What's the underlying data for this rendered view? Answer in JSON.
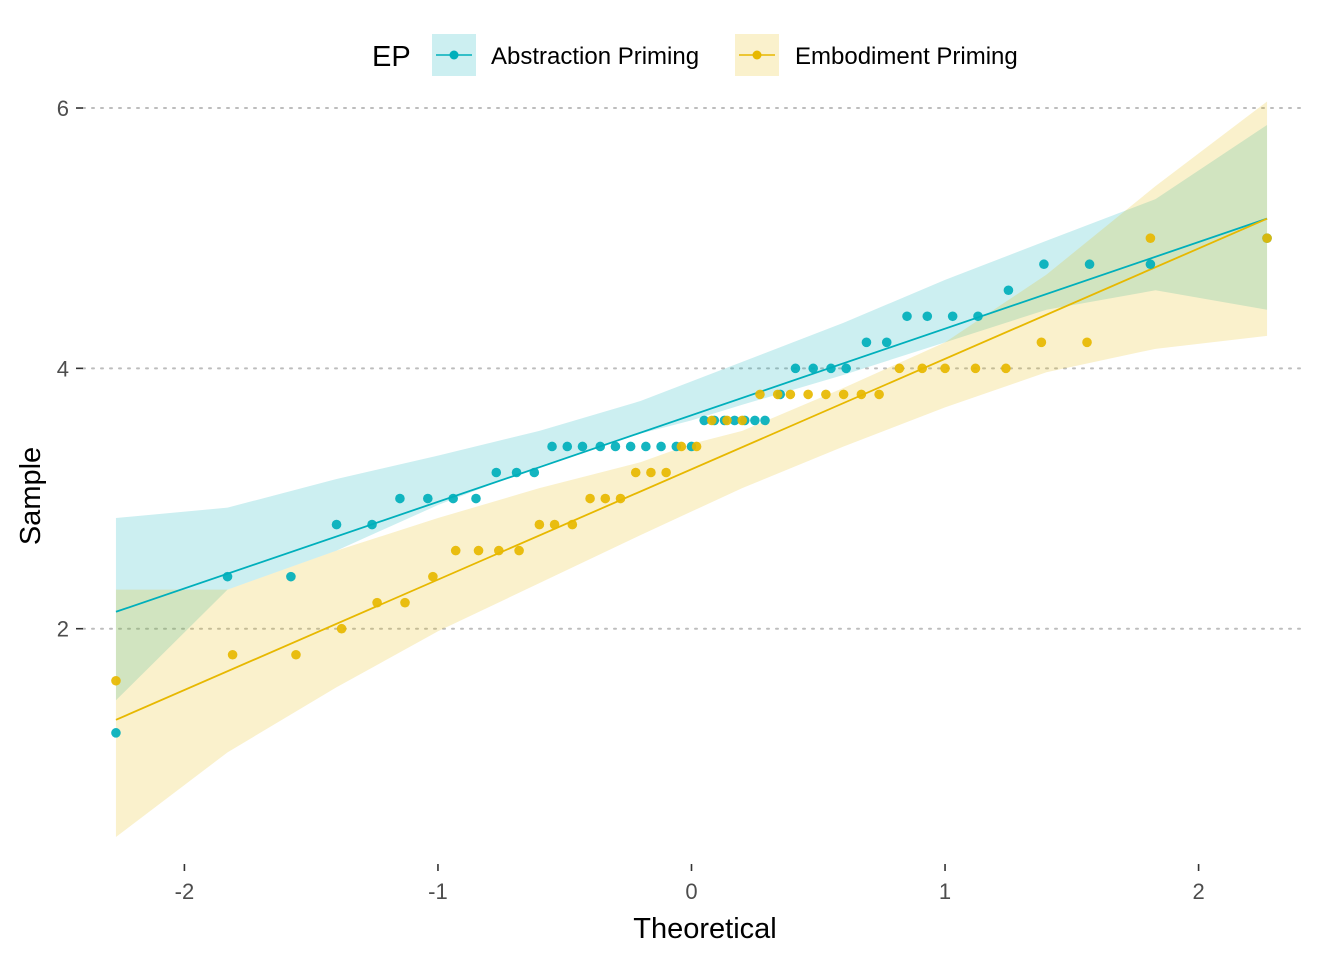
{
  "chart_data": {
    "type": "scatter",
    "title": "",
    "xlabel": "Theoretical",
    "ylabel": "Sample",
    "xlim": [
      -2.4,
      2.4
    ],
    "ylim": [
      0.3,
      6.1
    ],
    "x_ticks": [
      -2,
      -1,
      0,
      1,
      2
    ],
    "x_tick_labels": [
      "-2",
      "-1",
      "0",
      "1",
      "2"
    ],
    "y_ticks": [
      2,
      4,
      6
    ],
    "y_tick_labels": [
      "2",
      "4",
      "6"
    ],
    "grid": "horizontal dotted major lines only",
    "legend": {
      "title": "EP",
      "position": "top",
      "entries": [
        "Abstraction Priming",
        "Embodiment Priming"
      ]
    },
    "series": [
      {
        "name": "Abstraction Priming",
        "color": "#00AFBB",
        "line": {
          "x": [
            -2.27,
            2.27
          ],
          "y": [
            2.13,
            5.15
          ]
        },
        "band": {
          "x": [
            -2.27,
            -1.83,
            -1.4,
            -1.0,
            -0.6,
            -0.2,
            0.0,
            0.2,
            0.6,
            1.0,
            1.4,
            1.83,
            2.27
          ],
          "lower": [
            1.45,
            2.3,
            2.6,
            2.95,
            3.25,
            3.5,
            3.6,
            3.72,
            3.95,
            4.2,
            4.45,
            4.6,
            4.45
          ],
          "upper": [
            2.85,
            2.93,
            3.15,
            3.33,
            3.52,
            3.75,
            3.9,
            4.05,
            4.35,
            4.68,
            4.98,
            5.3,
            5.87
          ]
        },
        "points": {
          "x": [
            -2.27,
            -1.83,
            -1.58,
            -1.4,
            -1.26,
            -1.15,
            -1.04,
            -0.94,
            -0.85,
            -0.77,
            -0.69,
            -0.62,
            -0.55,
            -0.49,
            -0.43,
            -0.36,
            -0.3,
            -0.24,
            -0.18,
            -0.12,
            -0.06,
            0.0,
            0.05,
            0.09,
            0.13,
            0.17,
            0.21,
            0.25,
            0.29,
            0.35,
            0.41,
            0.48,
            0.55,
            0.61,
            0.69,
            0.77,
            0.85,
            0.93,
            1.03,
            1.13,
            1.25,
            1.39,
            1.57,
            1.81,
            2.27
          ],
          "y": [
            1.2,
            2.4,
            2.4,
            2.8,
            2.8,
            3.0,
            3.0,
            3.0,
            3.0,
            3.2,
            3.2,
            3.2,
            3.4,
            3.4,
            3.4,
            3.4,
            3.4,
            3.4,
            3.4,
            3.4,
            3.4,
            3.4,
            3.6,
            3.6,
            3.6,
            3.6,
            3.6,
            3.6,
            3.6,
            3.8,
            4.0,
            4.0,
            4.0,
            4.0,
            4.2,
            4.2,
            4.4,
            4.4,
            4.4,
            4.4,
            4.6,
            4.8,
            4.8,
            4.8,
            5.0
          ]
        }
      },
      {
        "name": "Embodiment Priming",
        "color": "#E7B800",
        "line": {
          "x": [
            -2.27,
            2.27
          ],
          "y": [
            1.3,
            5.15
          ]
        },
        "band": {
          "x": [
            -2.27,
            -1.83,
            -1.4,
            -1.0,
            -0.6,
            -0.2,
            0.0,
            0.2,
            0.6,
            1.0,
            1.4,
            1.83,
            2.27
          ],
          "lower": [
            0.4,
            1.05,
            1.55,
            1.98,
            2.35,
            2.72,
            2.9,
            3.08,
            3.4,
            3.7,
            3.97,
            4.15,
            4.25
          ],
          "upper": [
            2.3,
            2.3,
            2.6,
            2.85,
            3.08,
            3.28,
            3.42,
            3.52,
            3.85,
            4.2,
            4.72,
            5.4,
            6.05
          ]
        },
        "points": {
          "x": [
            -2.27,
            -1.81,
            -1.56,
            -1.38,
            -1.24,
            -1.13,
            -1.02,
            -0.93,
            -0.84,
            -0.76,
            -0.68,
            -0.6,
            -0.54,
            -0.47,
            -0.4,
            -0.34,
            -0.28,
            -0.22,
            -0.16,
            -0.1,
            -0.04,
            0.02,
            0.08,
            0.14,
            0.2,
            0.27,
            0.34,
            0.39,
            0.46,
            0.53,
            0.6,
            0.67,
            0.74,
            0.82,
            0.91,
            1.0,
            1.12,
            1.24,
            1.38,
            1.56,
            1.81,
            2.27
          ],
          "y": [
            1.6,
            1.8,
            1.8,
            2.0,
            2.2,
            2.2,
            2.4,
            2.6,
            2.6,
            2.6,
            2.6,
            2.8,
            2.8,
            2.8,
            3.0,
            3.0,
            3.0,
            3.2,
            3.2,
            3.2,
            3.4,
            3.4,
            3.6,
            3.6,
            3.6,
            3.8,
            3.8,
            3.8,
            3.8,
            3.8,
            3.8,
            3.8,
            3.8,
            4.0,
            4.0,
            4.0,
            4.0,
            4.0,
            4.2,
            4.2,
            5.0,
            5.0
          ]
        }
      }
    ]
  }
}
